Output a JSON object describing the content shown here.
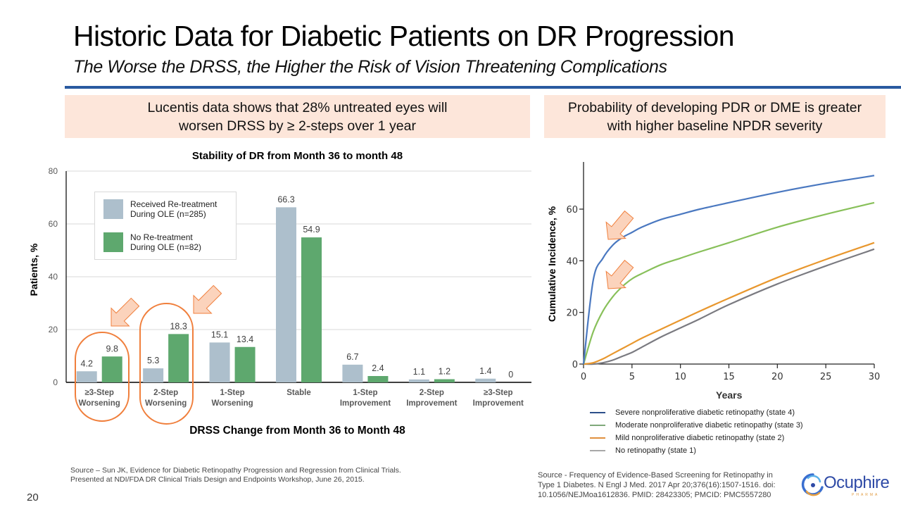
{
  "slide": {
    "title": "Historic Data for Diabetic Patients on DR Progression",
    "subtitle": "The Worse the DRSS, the Higher the Risk of Vision Threatening Complications",
    "page_number": "20",
    "accent_color": "#2a5aa0",
    "callout_bg": "#fde6da"
  },
  "callouts": {
    "left_line1": "Lucentis data shows that 28% untreated  eyes will",
    "left_line2": "worsen DRSS by ≥ 2-steps over 1 year",
    "right_line1": "Probability of developing PDR or DME is greater",
    "right_line2": "with higher baseline NPDR severity"
  },
  "sources": {
    "left_line1": "Source – Sun JK, Evidence for Diabetic Retinopathy Progression and Regression from Clinical Trials.",
    "left_line2": "Presented at NDI/FDA  DR Clinical Trials Design and Endpoints Workshop, June 26, 2015.",
    "right_line1": "Source - Frequency of Evidence-Based Screening for Retinopathy in",
    "right_line2": "Type 1 Diabetes. N Engl J Med. 2017 Apr 20;376(16):1507-1516. doi:",
    "right_line3": "10.1056/NEJMoa1612836. PMID: 28423305; PMCID: PMC5557280"
  },
  "logo": {
    "name": "Ocuphire",
    "tagline": "PHARMA"
  },
  "chart_data": [
    {
      "type": "bar",
      "title": "Stability of DR from Month 36 to month 48",
      "xlabel": "DRSS Change from Month 36 to Month 48",
      "ylabel": "Patients, %",
      "ylim": [
        0,
        80
      ],
      "yticks": [
        0,
        20,
        40,
        60,
        80
      ],
      "grid": true,
      "legend_position": "top-left",
      "categories": [
        [
          "≥3-Step",
          "Worsening"
        ],
        [
          "2-Step",
          "Worsening"
        ],
        [
          "1-Step",
          "Worsening"
        ],
        [
          "Stable"
        ],
        [
          "1-Step",
          "Improvement"
        ],
        [
          "2-Step",
          "Improvement"
        ],
        [
          "≥3-Step",
          "Improvement"
        ]
      ],
      "series": [
        {
          "name": "Received  Re-treatment During OLE (n=285)",
          "name_line1": "Received  Re-treatment",
          "name_line2": "During OLE (n=285)",
          "color": "#adbfcc",
          "values": [
            4.2,
            5.3,
            15.1,
            66.3,
            6.7,
            1.1,
            1.4
          ],
          "labels": [
            "4.2",
            "5.3",
            "15.1",
            "66.3",
            "6.7",
            "1.1",
            "1.4"
          ]
        },
        {
          "name": "No Re-treatment During OLE (n=82)",
          "name_line1": "No Re-treatment",
          "name_line2": "During OLE (n=82)",
          "color": "#5ea86e",
          "values": [
            9.8,
            18.3,
            13.4,
            54.9,
            2.4,
            1.2,
            0
          ],
          "labels": [
            "9.8",
            "18.3",
            "13.4",
            "54.9",
            "2.4",
            "1.2",
            "0"
          ]
        }
      ],
      "annotations": {
        "highlighted_categories": [
          0,
          1
        ],
        "highlight_color": "#f07f3c",
        "arrow_fill": "#fbd3bc"
      }
    },
    {
      "type": "line",
      "title": "",
      "xlabel": "Years",
      "ylabel": "Cumulative Incidence, %",
      "xlim": [
        0,
        30
      ],
      "ylim": [
        0,
        75
      ],
      "xticks": [
        0,
        5,
        10,
        15,
        20,
        25,
        30
      ],
      "yticks": [
        0,
        20,
        40,
        60
      ],
      "grid": false,
      "legend_position": "bottom",
      "series": [
        {
          "name": "Severe nonproliferative diabetic retinopathy (state 4)",
          "color": "#4a78c0",
          "legend_color": "#2c4f8a",
          "x": [
            0,
            1,
            2,
            3,
            4,
            5,
            6,
            8,
            10,
            12,
            15,
            20,
            25,
            30
          ],
          "y": [
            0,
            32.5,
            41,
            46,
            49,
            51,
            53,
            56,
            58,
            60,
            62.5,
            66.5,
            70,
            73
          ]
        },
        {
          "name": "Moderate nonproliferative diabetic retinopathy (state 3)",
          "color": "#88c05a",
          "legend_color": "#7fa97a",
          "x": [
            0,
            1,
            2,
            3,
            4,
            5,
            6,
            8,
            10,
            12,
            15,
            20,
            25,
            30
          ],
          "y": [
            0,
            12.5,
            20.5,
            26,
            30,
            33,
            35,
            38.5,
            41,
            43.5,
            47,
            53,
            58,
            62.5
          ]
        },
        {
          "name": "Mild nonproliferative diabetic retinopathy (state 2)",
          "color": "#e8972e",
          "legend_color": "#e0903e",
          "x": [
            0,
            1,
            2,
            3,
            4,
            5,
            6,
            8,
            10,
            12,
            15,
            20,
            25,
            30
          ],
          "y": [
            0,
            0.5,
            2,
            4,
            6,
            8,
            10,
            13.5,
            17,
            20.5,
            25.5,
            33.5,
            40.5,
            47
          ]
        },
        {
          "name": "No retinopathy (state 1)",
          "color": "#7a7a80",
          "legend_color": "#a8a8a8",
          "x": [
            0,
            1,
            2,
            3,
            4,
            5,
            6,
            8,
            10,
            12,
            15,
            20,
            25,
            30
          ],
          "y": [
            0,
            0,
            0.5,
            1.5,
            3,
            4.5,
            6.5,
            10.5,
            14,
            17.5,
            23,
            31,
            38,
            44.5
          ]
        }
      ],
      "annotations": {
        "arrows_pointing_to": [
          "state 4 curve near year 3",
          "state 3 curve near year 3"
        ],
        "arrow_fill": "#fbd3bc"
      }
    }
  ]
}
